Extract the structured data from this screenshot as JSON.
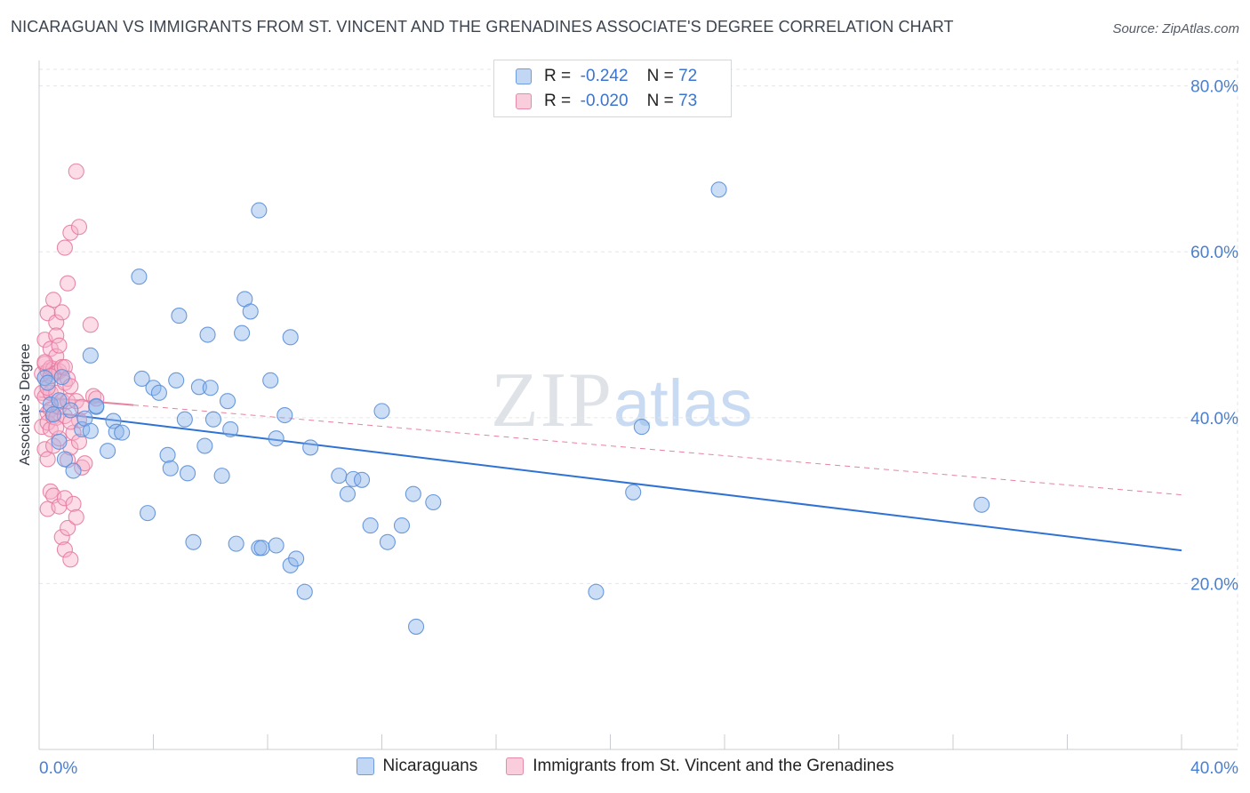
{
  "header": {
    "title": "NICARAGUAN VS IMMIGRANTS FROM ST. VINCENT AND THE GRENADINES ASSOCIATE'S DEGREE CORRELATION CHART",
    "source": "Source: ZipAtlas.com"
  },
  "watermark": {
    "zip": "ZIP",
    "atlas": "atlas"
  },
  "legend_top": [
    {
      "r_label": "R =",
      "r_value": "-0.242",
      "n_label": "N =",
      "n_value": "72",
      "color": "#a8c6f0",
      "border": "#5a8fd8"
    },
    {
      "r_label": "R =",
      "r_value": "-0.020",
      "n_label": "N =",
      "n_value": "73",
      "color": "#f7bcd0",
      "border": "#e47aa0"
    }
  ],
  "chart_data": {
    "type": "scatter",
    "title": "NICARAGUAN VS IMMIGRANTS FROM ST. VINCENT AND THE GRENADINES ASSOCIATE'S DEGREE CORRELATION CHART",
    "xlabel": "",
    "ylabel": "Associate's Degree",
    "xlim": [
      0,
      40
    ],
    "ylim": [
      0,
      82
    ],
    "x_tick_labels": [
      "0.0%",
      "40.0%"
    ],
    "y_ticks": [
      20,
      40,
      60,
      80
    ],
    "y_tick_labels": [
      "20.0%",
      "40.0%",
      "60.0%",
      "80.0%"
    ],
    "grid": true,
    "legend": "bottom",
    "series": [
      {
        "name": "Nicaraguans",
        "color": "#8fb6ea",
        "stroke": "#5b8fd8",
        "trend": {
          "x0": 0,
          "y0": 40.8,
          "x1": 40,
          "y1": 24.0,
          "dashed": false,
          "color": "#2f72d4"
        },
        "points": [
          [
            0.2,
            44.8
          ],
          [
            0.3,
            44.2
          ],
          [
            0.4,
            41.6
          ],
          [
            0.5,
            40.4
          ],
          [
            0.7,
            42.1
          ],
          [
            0.7,
            37.1
          ],
          [
            0.8,
            44.9
          ],
          [
            0.9,
            35.0
          ],
          [
            1.1,
            40.9
          ],
          [
            1.2,
            33.6
          ],
          [
            1.5,
            38.6
          ],
          [
            1.6,
            39.9
          ],
          [
            1.8,
            47.5
          ],
          [
            1.8,
            38.4
          ],
          [
            2.0,
            41.3
          ],
          [
            2.0,
            41.4
          ],
          [
            2.4,
            36.0
          ],
          [
            2.6,
            39.6
          ],
          [
            2.7,
            38.3
          ],
          [
            3.5,
            57.0
          ],
          [
            3.6,
            44.7
          ],
          [
            3.8,
            28.5
          ],
          [
            4.0,
            43.6
          ],
          [
            4.2,
            43.0
          ],
          [
            4.5,
            35.5
          ],
          [
            4.6,
            33.9
          ],
          [
            4.8,
            44.5
          ],
          [
            4.9,
            52.3
          ],
          [
            5.1,
            39.8
          ],
          [
            5.2,
            33.3
          ],
          [
            5.4,
            25.0
          ],
          [
            5.6,
            43.7
          ],
          [
            5.8,
            36.6
          ],
          [
            5.9,
            50.0
          ],
          [
            6.1,
            39.8
          ],
          [
            6.0,
            43.6
          ],
          [
            6.4,
            33.0
          ],
          [
            6.6,
            42.0
          ],
          [
            6.7,
            38.6
          ],
          [
            6.9,
            24.8
          ],
          [
            7.1,
            50.2
          ],
          [
            7.2,
            54.3
          ],
          [
            7.4,
            52.8
          ],
          [
            7.7,
            24.3
          ],
          [
            7.7,
            65.0
          ],
          [
            7.8,
            24.3
          ],
          [
            8.1,
            44.5
          ],
          [
            8.3,
            24.6
          ],
          [
            8.3,
            37.5
          ],
          [
            8.6,
            40.3
          ],
          [
            8.8,
            49.7
          ],
          [
            8.8,
            22.2
          ],
          [
            9.0,
            23.0
          ],
          [
            9.3,
            19.0
          ],
          [
            9.5,
            36.4
          ],
          [
            10.5,
            33.0
          ],
          [
            10.8,
            30.8
          ],
          [
            11.0,
            32.6
          ],
          [
            11.3,
            32.5
          ],
          [
            11.6,
            27.0
          ],
          [
            12.2,
            25.0
          ],
          [
            12.0,
            40.8
          ],
          [
            12.7,
            27.0
          ],
          [
            13.1,
            30.8
          ],
          [
            13.2,
            14.8
          ],
          [
            13.8,
            29.8
          ],
          [
            19.5,
            19.0
          ],
          [
            20.8,
            31.0
          ],
          [
            21.1,
            38.9
          ],
          [
            23.8,
            67.5
          ],
          [
            33.0,
            29.5
          ],
          [
            2.9,
            38.2
          ]
        ]
      },
      {
        "name": "Immigrants from St. Vincent and the Grenadines",
        "color": "#f6b2c9",
        "stroke": "#e57ba1",
        "trend": {
          "x0": 0,
          "y0": 42.5,
          "x1": 40,
          "y1": 30.7,
          "dashed": true,
          "color": "#e8829f",
          "solid_until_x": 3.3
        },
        "points": [
          [
            0.1,
            45.3
          ],
          [
            0.1,
            43.0
          ],
          [
            0.1,
            38.9
          ],
          [
            0.2,
            49.4
          ],
          [
            0.2,
            46.5
          ],
          [
            0.2,
            42.5
          ],
          [
            0.2,
            36.2
          ],
          [
            0.3,
            52.6
          ],
          [
            0.3,
            45.6
          ],
          [
            0.3,
            40.6
          ],
          [
            0.3,
            39.4
          ],
          [
            0.3,
            35.0
          ],
          [
            0.3,
            29.0
          ],
          [
            0.4,
            48.3
          ],
          [
            0.4,
            46.0
          ],
          [
            0.4,
            43.0
          ],
          [
            0.4,
            41.0
          ],
          [
            0.4,
            38.6
          ],
          [
            0.4,
            31.1
          ],
          [
            0.5,
            54.2
          ],
          [
            0.5,
            45.9
          ],
          [
            0.5,
            40.1
          ],
          [
            0.5,
            36.6
          ],
          [
            0.5,
            30.6
          ],
          [
            0.6,
            51.5
          ],
          [
            0.6,
            49.9
          ],
          [
            0.6,
            47.4
          ],
          [
            0.6,
            45.4
          ],
          [
            0.6,
            43.0
          ],
          [
            0.6,
            40.0
          ],
          [
            0.7,
            48.7
          ],
          [
            0.7,
            45.6
          ],
          [
            0.7,
            41.3
          ],
          [
            0.7,
            37.5
          ],
          [
            0.7,
            29.3
          ],
          [
            0.8,
            52.7
          ],
          [
            0.8,
            46.1
          ],
          [
            0.8,
            42.0
          ],
          [
            0.8,
            25.6
          ],
          [
            0.9,
            60.5
          ],
          [
            0.9,
            46.1
          ],
          [
            0.9,
            44.2
          ],
          [
            0.9,
            40.2
          ],
          [
            0.9,
            30.3
          ],
          [
            0.9,
            24.1
          ],
          [
            1.0,
            56.2
          ],
          [
            1.0,
            44.7
          ],
          [
            1.0,
            42.0
          ],
          [
            1.0,
            34.9
          ],
          [
            1.0,
            26.7
          ],
          [
            1.1,
            62.3
          ],
          [
            1.1,
            43.8
          ],
          [
            1.1,
            36.4
          ],
          [
            1.1,
            22.9
          ],
          [
            1.2,
            38.2
          ],
          [
            1.2,
            29.6
          ],
          [
            1.3,
            69.7
          ],
          [
            1.3,
            42.0
          ],
          [
            1.3,
            28.0
          ],
          [
            1.4,
            63.0
          ],
          [
            1.4,
            39.7
          ],
          [
            1.4,
            37.1
          ],
          [
            1.5,
            41.3
          ],
          [
            1.5,
            34.0
          ],
          [
            1.6,
            34.5
          ],
          [
            1.8,
            51.2
          ],
          [
            1.9,
            42.6
          ],
          [
            2.0,
            42.3
          ],
          [
            0.2,
            46.7
          ],
          [
            0.3,
            43.6
          ],
          [
            0.4,
            45.0
          ],
          [
            0.6,
            38.8
          ],
          [
            1.1,
            39.5
          ]
        ]
      }
    ]
  }
}
